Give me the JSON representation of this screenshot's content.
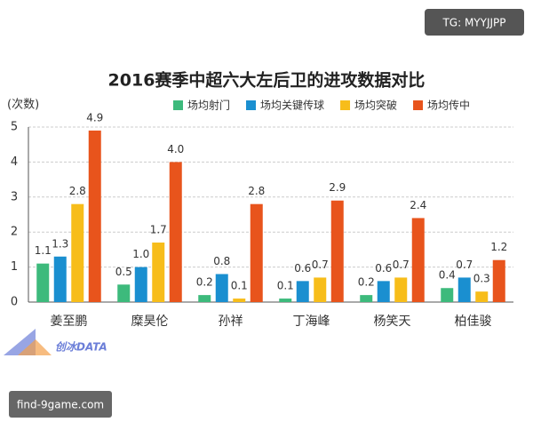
{
  "chart_data": {
    "type": "bar",
    "title": "2016赛季中超六大左后卫的进攻数据对比",
    "ylabel": "(次数)",
    "categories": [
      "姜至鹏",
      "糜昊伦",
      "孙祥",
      "丁海峰",
      "杨笑天",
      "柏佳骏"
    ],
    "series": [
      {
        "name": "场均射门",
        "color": "#3dba7c",
        "values": [
          1.1,
          0.5,
          0.2,
          0.1,
          0.2,
          0.4
        ],
        "value_labels": [
          "1.1",
          "0.5",
          "0.2",
          "0.1",
          "0.2",
          "0.4"
        ]
      },
      {
        "name": "场均关键传球",
        "color": "#1a8fd0",
        "values": [
          1.3,
          1.0,
          0.8,
          0.6,
          0.6,
          0.7
        ],
        "value_labels": [
          "1.3",
          "1.0",
          "0.8",
          "0.6",
          "0.6",
          "0.7"
        ]
      },
      {
        "name": "场均突破",
        "color": "#f7bd1a",
        "values": [
          2.8,
          1.7,
          0.1,
          0.7,
          0.7,
          0.3
        ],
        "value_labels": [
          "2.8",
          "1.7",
          "0.1",
          "0.7",
          "0.7",
          "0.3"
        ]
      },
      {
        "name": "场均传中",
        "color": "#e8541c",
        "values": [
          4.9,
          4.0,
          2.8,
          2.9,
          2.4,
          1.2
        ],
        "value_labels": [
          "4.9",
          "4.0",
          "2.8",
          "2.9",
          "2.4",
          "1.2"
        ]
      }
    ],
    "ylim": [
      0,
      5
    ],
    "yticks": [
      0,
      1,
      2,
      3,
      4,
      5
    ],
    "grid": true
  },
  "watermark_top": "TG: MYYJJPP",
  "logo": "创冰DATA",
  "watermark_bottom": "find-9game.com"
}
